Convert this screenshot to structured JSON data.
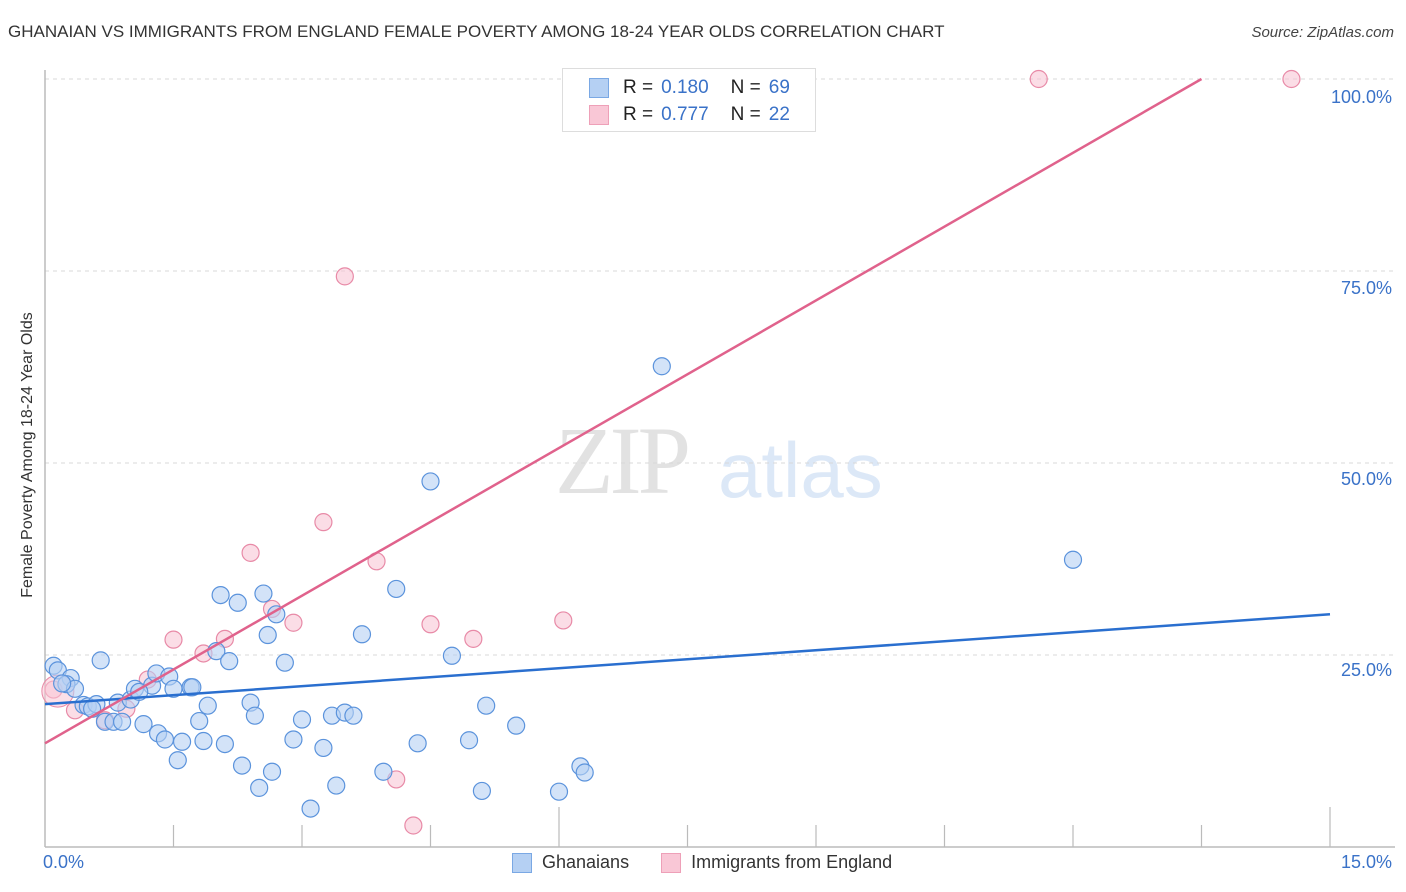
{
  "header": {
    "title": "GHANAIAN VS IMMIGRANTS FROM ENGLAND FEMALE POVERTY AMONG 18-24 YEAR OLDS CORRELATION CHART",
    "source": "Source: ZipAtlas.com"
  },
  "watermark": {
    "zip": "ZIP",
    "atlas": "atlas"
  },
  "axes": {
    "ylabel": "Female Poverty Among 18-24 Year Olds",
    "yticks": [
      "100.0%",
      "75.0%",
      "50.0%",
      "25.0%"
    ],
    "xticks": [
      "0.0%",
      "15.0%"
    ]
  },
  "legend_top": {
    "rows": [
      {
        "r_label": "R =",
        "r_value": "0.180",
        "n_label": "N =",
        "n_value": "69",
        "color": "#a9c9f2"
      },
      {
        "r_label": "R =",
        "r_value": "0.777",
        "n_label": "N =",
        "n_value": "22",
        "color": "#f7bcd0"
      }
    ]
  },
  "legend_bottom": {
    "items": [
      {
        "label": "Ghanaians",
        "color": "#a9c9f2"
      },
      {
        "label": "Immigrants from England",
        "color": "#f7bcd0"
      }
    ]
  },
  "colors": {
    "blue_fill": "#b5d0f3",
    "blue_stroke": "#5b93dc",
    "blue_line": "#2a6fcf",
    "pink_fill": "#f9c7d6",
    "pink_stroke": "#e88aa7",
    "pink_line": "#e0628c",
    "tick_text": "#3a72c8"
  },
  "chart_data": {
    "type": "scatter",
    "title": "GHANAIAN VS IMMIGRANTS FROM ENGLAND FEMALE POVERTY AMONG 18-24 YEAR OLDS CORRELATION CHART",
    "xlabel": "",
    "ylabel": "Female Poverty Among 18-24 Year Olds",
    "xlim": [
      0,
      15
    ],
    "ylim": [
      0,
      100
    ],
    "x_tick_labels": [
      "0.0%",
      "15.0%"
    ],
    "y_tick_labels": [
      "25.0%",
      "50.0%",
      "75.0%",
      "100.0%"
    ],
    "grid": "horizontal dashed",
    "legend_position": "top-center",
    "series": [
      {
        "name": "Ghanaians",
        "R": 0.18,
        "N": 69,
        "trend": {
          "x": [
            0,
            15
          ],
          "y": [
            18.6,
            30.3
          ]
        },
        "points": [
          [
            0.1,
            23.6
          ],
          [
            0.15,
            23.0
          ],
          [
            0.3,
            22.0
          ],
          [
            0.25,
            21.2
          ],
          [
            0.35,
            20.6
          ],
          [
            0.45,
            18.5
          ],
          [
            0.5,
            18.3
          ],
          [
            0.6,
            18.6
          ],
          [
            0.65,
            24.3
          ],
          [
            0.7,
            16.3
          ],
          [
            0.8,
            16.3
          ],
          [
            0.85,
            18.8
          ],
          [
            0.9,
            16.3
          ],
          [
            1.0,
            19.2
          ],
          [
            1.05,
            20.6
          ],
          [
            1.15,
            16.0
          ],
          [
            1.25,
            21.0
          ],
          [
            1.3,
            22.6
          ],
          [
            1.32,
            14.8
          ],
          [
            1.4,
            14.0
          ],
          [
            1.45,
            22.2
          ],
          [
            1.5,
            20.6
          ],
          [
            1.55,
            11.3
          ],
          [
            1.6,
            13.7
          ],
          [
            1.7,
            20.8
          ],
          [
            1.72,
            20.8
          ],
          [
            1.8,
            16.4
          ],
          [
            1.85,
            13.8
          ],
          [
            1.9,
            18.4
          ],
          [
            2.0,
            25.5
          ],
          [
            2.05,
            32.8
          ],
          [
            2.1,
            13.4
          ],
          [
            2.15,
            24.2
          ],
          [
            2.25,
            31.8
          ],
          [
            2.3,
            10.6
          ],
          [
            2.4,
            18.8
          ],
          [
            2.45,
            17.1
          ],
          [
            2.5,
            7.7
          ],
          [
            2.55,
            33.0
          ],
          [
            2.6,
            27.6
          ],
          [
            2.65,
            9.8
          ],
          [
            2.7,
            30.3
          ],
          [
            2.8,
            24.0
          ],
          [
            2.9,
            14.0
          ],
          [
            3.0,
            16.6
          ],
          [
            3.1,
            5.0
          ],
          [
            3.25,
            12.9
          ],
          [
            3.35,
            17.1
          ],
          [
            3.4,
            8.0
          ],
          [
            3.5,
            17.5
          ],
          [
            3.6,
            17.1
          ],
          [
            3.7,
            27.7
          ],
          [
            3.95,
            9.8
          ],
          [
            4.1,
            33.6
          ],
          [
            4.35,
            13.5
          ],
          [
            4.5,
            47.6
          ],
          [
            4.75,
            24.9
          ],
          [
            4.95,
            13.9
          ],
          [
            5.1,
            7.3
          ],
          [
            5.15,
            18.4
          ],
          [
            5.5,
            15.8
          ],
          [
            6.0,
            7.2
          ],
          [
            6.25,
            10.5
          ],
          [
            6.3,
            9.7
          ],
          [
            7.2,
            62.6
          ],
          [
            12.0,
            37.4
          ],
          [
            0.2,
            21.3
          ],
          [
            0.55,
            18.0
          ],
          [
            1.1,
            20.2
          ]
        ]
      },
      {
        "name": "Immigrants from England",
        "R": 0.777,
        "N": 22,
        "trend": {
          "x": [
            0,
            13.5
          ],
          "y": [
            13.5,
            100
          ]
        },
        "points": [
          [
            0.1,
            20.5
          ],
          [
            0.35,
            17.8
          ],
          [
            0.7,
            16.5
          ],
          [
            0.95,
            18.0
          ],
          [
            1.2,
            21.8
          ],
          [
            1.5,
            27.0
          ],
          [
            1.85,
            25.2
          ],
          [
            2.1,
            27.1
          ],
          [
            2.4,
            38.3
          ],
          [
            2.65,
            31.0
          ],
          [
            2.9,
            29.2
          ],
          [
            3.25,
            42.3
          ],
          [
            3.5,
            74.3
          ],
          [
            3.87,
            37.2
          ],
          [
            4.1,
            8.8
          ],
          [
            4.3,
            2.8
          ],
          [
            4.5,
            29.0
          ],
          [
            5.0,
            27.1
          ],
          [
            6.05,
            29.5
          ],
          [
            11.6,
            100.0
          ],
          [
            14.55,
            100.0
          ],
          [
            7.0,
            100.0
          ]
        ]
      }
    ]
  }
}
